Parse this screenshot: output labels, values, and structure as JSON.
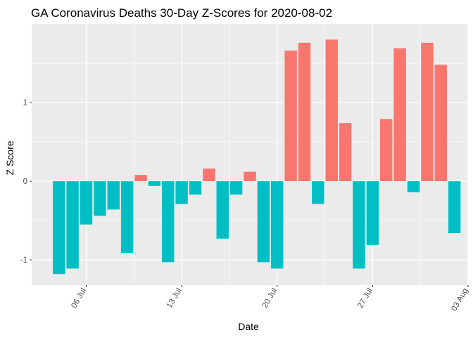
{
  "chart_data": {
    "type": "bar",
    "title": "GA Coronavirus Deaths 30-Day Z-Scores for 2020-08-02",
    "xlabel": "Date",
    "ylabel": "Z Score",
    "x": [
      "2020-07-04",
      "2020-07-05",
      "2020-07-06",
      "2020-07-07",
      "2020-07-08",
      "2020-07-09",
      "2020-07-10",
      "2020-07-11",
      "2020-07-12",
      "2020-07-13",
      "2020-07-14",
      "2020-07-15",
      "2020-07-16",
      "2020-07-17",
      "2020-07-18",
      "2020-07-19",
      "2020-07-20",
      "2020-07-21",
      "2020-07-22",
      "2020-07-23",
      "2020-07-24",
      "2020-07-25",
      "2020-07-26",
      "2020-07-27",
      "2020-07-28",
      "2020-07-29",
      "2020-07-30",
      "2020-07-31",
      "2020-08-01",
      "2020-08-02"
    ],
    "values": [
      -1.18,
      -1.11,
      -0.55,
      -0.44,
      -0.36,
      -0.91,
      0.08,
      -0.06,
      -1.03,
      -0.29,
      -0.17,
      0.16,
      -0.73,
      -0.17,
      0.12,
      -1.03,
      -1.11,
      1.66,
      1.76,
      -0.29,
      1.8,
      0.74,
      -1.11,
      -0.81,
      0.79,
      1.69,
      -0.14,
      1.76,
      1.48,
      -0.66
    ],
    "xlim": [
      "2020-07-02",
      "2020-08-03"
    ],
    "ylim": [
      -1.32,
      2.0
    ],
    "x_ticks": [
      {
        "date": "2020-07-06",
        "label": "06 Jul"
      },
      {
        "date": "2020-07-13",
        "label": "13 Jul"
      },
      {
        "date": "2020-07-20",
        "label": "20 Jul"
      },
      {
        "date": "2020-07-27",
        "label": "27 Jul"
      },
      {
        "date": "2020-08-03",
        "label": "03 Aug"
      }
    ],
    "y_ticks": [
      -1,
      0,
      1
    ],
    "grid": true,
    "colors": {
      "positive": "#F8766D",
      "negative": "#00BFC4",
      "panel": "#EBEBEB",
      "grid_major": "#FFFFFF",
      "tick_text": "#4D4D4D"
    }
  }
}
